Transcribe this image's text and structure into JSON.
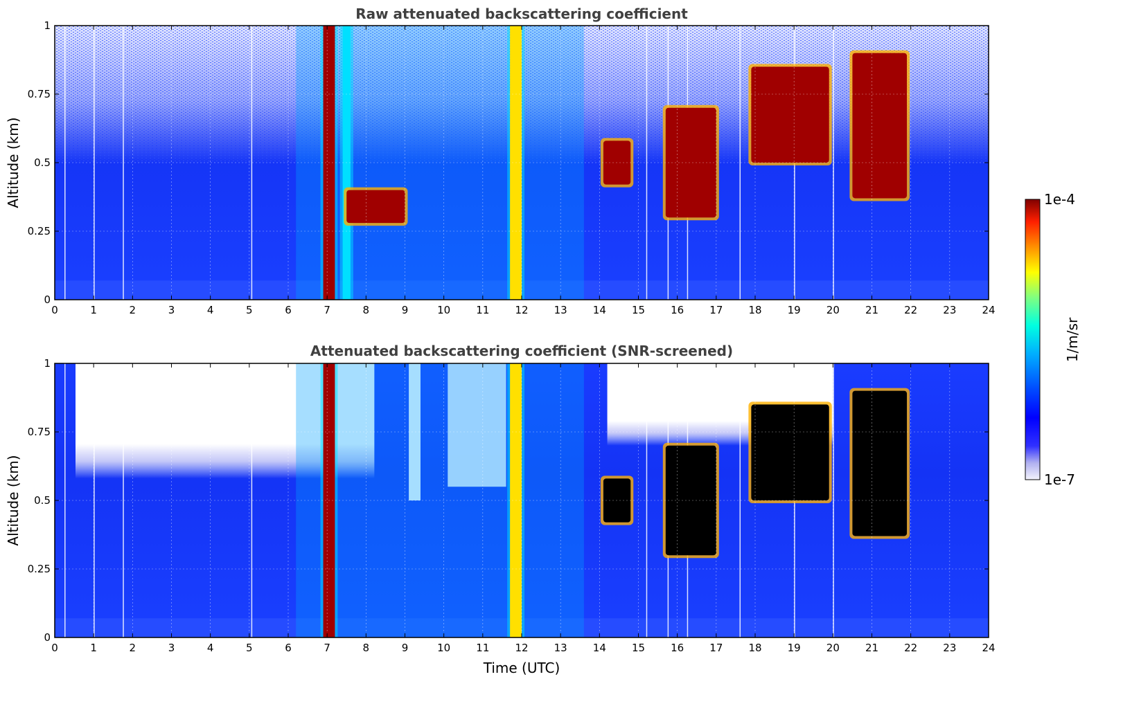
{
  "chart_data": [
    {
      "type": "heatmap",
      "title": "Raw attenuated backscattering coefficient",
      "xlabel": "",
      "ylabel": "Altitude (km)",
      "xlim": [
        0,
        24
      ],
      "ylim": [
        0,
        1
      ],
      "xticks": [
        "0",
        "1",
        "2",
        "3",
        "4",
        "5",
        "6",
        "7",
        "8",
        "9",
        "10",
        "11",
        "12",
        "13",
        "14",
        "15",
        "16",
        "17",
        "18",
        "19",
        "20",
        "21",
        "22",
        "23",
        "24"
      ],
      "yticks": [
        "0",
        "0.25",
        "0.5",
        "0.75",
        "1"
      ],
      "grid": true,
      "background_level": "1e-6 (blue)",
      "features": [
        {
          "x": [
            6.9,
            7.2
          ],
          "y": [
            0,
            1
          ],
          "value": "1e-4"
        },
        {
          "x": [
            7.4,
            7.6
          ],
          "y": [
            0,
            1
          ],
          "value": "5e-6"
        },
        {
          "x": [
            11.7,
            12.0
          ],
          "y": [
            0,
            1
          ],
          "value": "1e-5"
        },
        {
          "x": [
            7.5,
            9.0
          ],
          "y": [
            0.28,
            0.4
          ],
          "value": "1e-4"
        },
        {
          "x": [
            14.1,
            14.8
          ],
          "y": [
            0.42,
            0.58
          ],
          "value": "1e-4"
        },
        {
          "x": [
            15.7,
            17.0
          ],
          "y": [
            0.3,
            0.7
          ],
          "value": "1e-4"
        },
        {
          "x": [
            17.9,
            19.9
          ],
          "y": [
            0.5,
            0.85
          ],
          "value": "1e-4"
        },
        {
          "x": [
            20.5,
            21.9
          ],
          "y": [
            0.37,
            0.9
          ],
          "value": "1e-4"
        }
      ]
    },
    {
      "type": "heatmap",
      "title": "Attenuated backscattering coefficient (SNR-screened)",
      "xlabel": "Time (UTC)",
      "ylabel": "Altitude (km)",
      "xlim": [
        0,
        24
      ],
      "ylim": [
        0,
        1
      ],
      "xticks": [
        "0",
        "1",
        "2",
        "3",
        "4",
        "5",
        "6",
        "7",
        "8",
        "9",
        "10",
        "11",
        "12",
        "13",
        "14",
        "15",
        "16",
        "17",
        "18",
        "19",
        "20",
        "21",
        "22",
        "23",
        "24"
      ],
      "yticks": [
        "0",
        "0.25",
        "0.5",
        "0.75",
        "1"
      ],
      "grid": true,
      "background_level": "1e-6 (blue)",
      "masked_regions": "white above ~0.6 km where SNR is low",
      "features": [
        {
          "x": [
            6.9,
            7.2
          ],
          "y": [
            0,
            1
          ],
          "value": "1e-4"
        },
        {
          "x": [
            11.7,
            12.0
          ],
          "y": [
            0,
            1
          ],
          "value": "1e-5"
        },
        {
          "x": [
            14.1,
            14.8
          ],
          "y": [
            0.42,
            0.58
          ],
          "value": "over range"
        },
        {
          "x": [
            15.7,
            17.0
          ],
          "y": [
            0.3,
            0.7
          ],
          "value": "over range"
        },
        {
          "x": [
            17.9,
            19.9
          ],
          "y": [
            0.5,
            0.85
          ],
          "value": "over range"
        },
        {
          "x": [
            20.5,
            21.9
          ],
          "y": [
            0.37,
            0.9
          ],
          "value": "over range"
        }
      ]
    }
  ],
  "colorbar": {
    "label": "1/m/sr",
    "max_label": "1e-4",
    "min_label": "1e-7",
    "scale": "log",
    "colormap": [
      "#e8e8f8",
      "#b0b0f0",
      "#4040ff",
      "#0000ff",
      "#0060ff",
      "#00b0ff",
      "#00ffe0",
      "#80ff80",
      "#ffff00",
      "#ff9000",
      "#ff2000",
      "#800000"
    ]
  }
}
